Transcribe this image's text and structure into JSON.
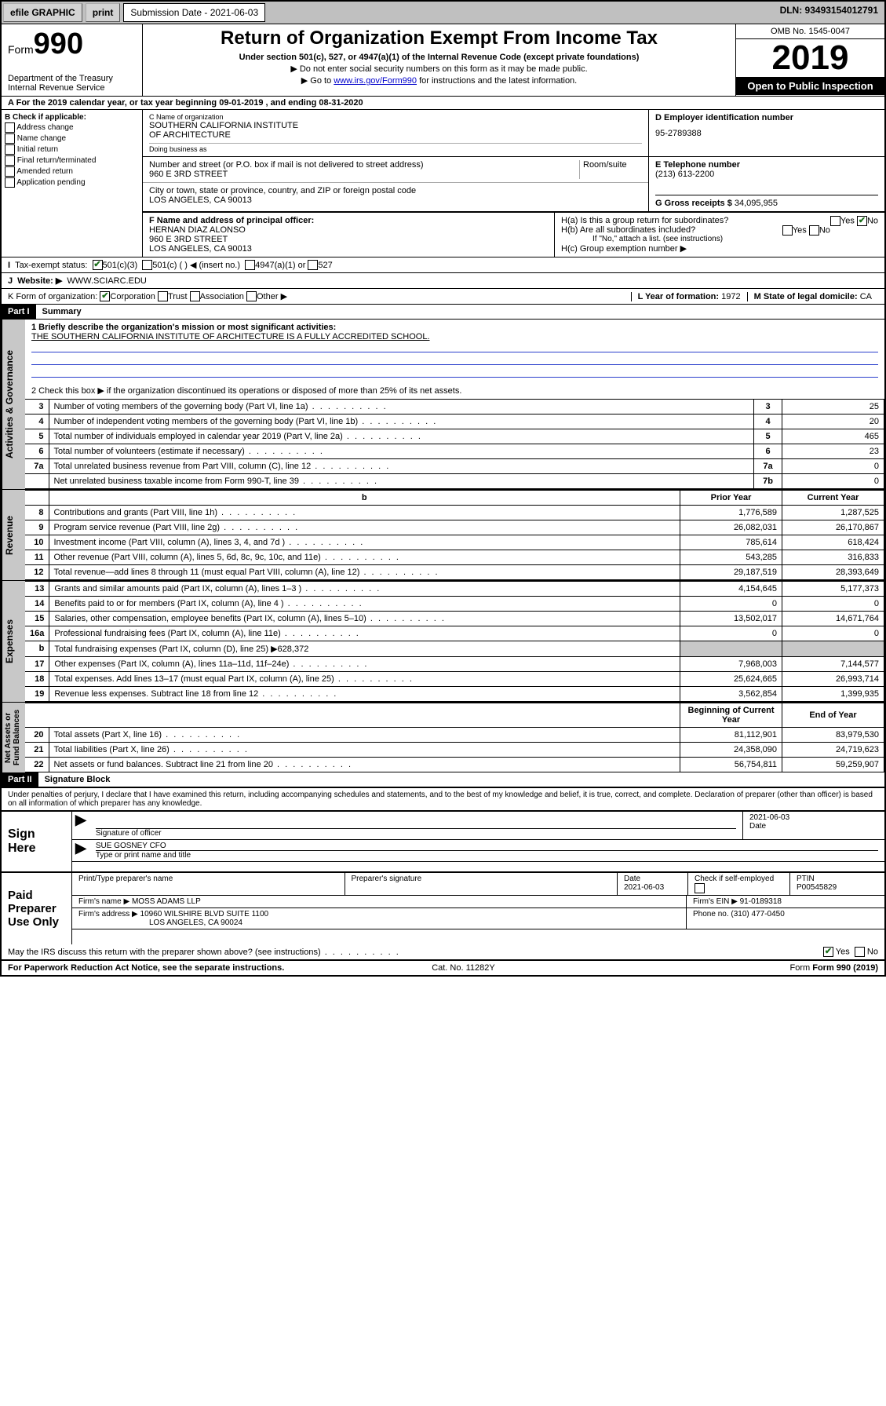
{
  "topbar": {
    "efile": "efile GRAPHIC",
    "print": "print",
    "sub_label": "Submission Date - 2021-06-03",
    "dln": "DLN: 93493154012791"
  },
  "header": {
    "form_prefix": "Form",
    "form_num": "990",
    "title": "Return of Organization Exempt From Income Tax",
    "subtitle": "Under section 501(c), 527, or 4947(a)(1) of the Internal Revenue Code (except private foundations)",
    "note1": "▶ Do not enter social security numbers on this form as it may be made public.",
    "note2_pre": "▶ Go to ",
    "note2_link": "www.irs.gov/Form990",
    "note2_post": " for instructions and the latest information.",
    "dept": "Department of the Treasury\nInternal Revenue Service",
    "omb": "OMB No. 1545-0047",
    "year": "2019",
    "inspect": "Open to Public Inspection"
  },
  "period": "For the 2019 calendar year, or tax year beginning 09-01-2019    , and ending 08-31-2020",
  "box_b": {
    "label": "B Check if applicable:",
    "opts": [
      "Address change",
      "Name change",
      "Initial return",
      "Final return/terminated",
      "Amended return",
      "Application pending"
    ]
  },
  "box_c": {
    "name_lbl": "C Name of organization",
    "name": "SOUTHERN CALIFORNIA INSTITUTE\nOF ARCHITECTURE",
    "dba_lbl": "Doing business as",
    "dba": "",
    "addr_lbl": "Number and street (or P.O. box if mail is not delivered to street address)",
    "addr": "960 E 3RD STREET",
    "room_lbl": "Room/suite",
    "city_lbl": "City or town, state or province, country, and ZIP or foreign postal code",
    "city": "LOS ANGELES, CA  90013"
  },
  "box_d": {
    "lbl": "D Employer identification number",
    "val": "95-2789388"
  },
  "box_e": {
    "lbl": "E Telephone number",
    "val": "(213) 613-2200"
  },
  "box_g": {
    "lbl": "G Gross receipts $",
    "val": "34,095,955"
  },
  "box_f": {
    "lbl": "F  Name and address of principal officer:",
    "name": "HERNAN DIAZ ALONSO",
    "addr1": "960 E 3RD STREET",
    "addr2": "LOS ANGELES, CA  90013"
  },
  "box_h": {
    "a": "H(a)  Is this a group return for subordinates?",
    "b": "H(b)  Are all subordinates included?",
    "b_note": "If \"No,\" attach a list. (see instructions)",
    "c": "H(c)  Group exemption number ▶"
  },
  "tax_status": {
    "lbl": "Tax-exempt status:",
    "c3": "501(c)(3)",
    "c": "501(c) (  ) ◀ (insert no.)",
    "a1": "4947(a)(1) or",
    "s527": "527"
  },
  "website": {
    "lbl": "Website: ▶",
    "val": "WWW.SCIARC.EDU"
  },
  "box_k": "K Form of organization:",
  "k_opts": [
    "Corporation",
    "Trust",
    "Association",
    "Other ▶"
  ],
  "box_l": {
    "lbl": "L Year of formation:",
    "val": "1972"
  },
  "box_m": {
    "lbl": "M State of legal domicile:",
    "val": "CA"
  },
  "part1": {
    "hdr": "Part I",
    "title": "Summary"
  },
  "mission": {
    "lbl": "1  Briefly describe the organization's mission or most significant activities:",
    "text": "THE SOUTHERN CALIFORNIA INSTITUTE OF ARCHITECTURE IS A FULLY ACCREDITED SCHOOL."
  },
  "line2": "2   Check this box ▶        if the organization discontinued its operations or disposed of more than 25% of its net assets.",
  "gov_lines": [
    {
      "n": "3",
      "d": "Number of voting members of the governing body (Part VI, line 1a)",
      "b": "3",
      "v": "25"
    },
    {
      "n": "4",
      "d": "Number of independent voting members of the governing body (Part VI, line 1b)",
      "b": "4",
      "v": "20"
    },
    {
      "n": "5",
      "d": "Total number of individuals employed in calendar year 2019 (Part V, line 2a)",
      "b": "5",
      "v": "465"
    },
    {
      "n": "6",
      "d": "Total number of volunteers (estimate if necessary)",
      "b": "6",
      "v": "23"
    },
    {
      "n": "7a",
      "d": "Total unrelated business revenue from Part VIII, column (C), line 12",
      "b": "7a",
      "v": "0"
    },
    {
      "n": "",
      "d": "Net unrelated business taxable income from Form 990-T, line 39",
      "b": "7b",
      "v": "0"
    }
  ],
  "rev_hdr": {
    "b": "b",
    "py": "Prior Year",
    "cy": "Current Year"
  },
  "rev_lines": [
    {
      "n": "8",
      "d": "Contributions and grants (Part VIII, line 1h)",
      "py": "1,776,589",
      "cy": "1,287,525"
    },
    {
      "n": "9",
      "d": "Program service revenue (Part VIII, line 2g)",
      "py": "26,082,031",
      "cy": "26,170,867"
    },
    {
      "n": "10",
      "d": "Investment income (Part VIII, column (A), lines 3, 4, and 7d )",
      "py": "785,614",
      "cy": "618,424"
    },
    {
      "n": "11",
      "d": "Other revenue (Part VIII, column (A), lines 5, 6d, 8c, 9c, 10c, and 11e)",
      "py": "543,285",
      "cy": "316,833"
    },
    {
      "n": "12",
      "d": "Total revenue—add lines 8 through 11 (must equal Part VIII, column (A), line 12)",
      "py": "29,187,519",
      "cy": "28,393,649"
    }
  ],
  "exp_lines": [
    {
      "n": "13",
      "d": "Grants and similar amounts paid (Part IX, column (A), lines 1–3 )",
      "py": "4,154,645",
      "cy": "5,177,373"
    },
    {
      "n": "14",
      "d": "Benefits paid to or for members (Part IX, column (A), line 4 )",
      "py": "0",
      "cy": "0"
    },
    {
      "n": "15",
      "d": "Salaries, other compensation, employee benefits (Part IX, column (A), lines 5–10)",
      "py": "13,502,017",
      "cy": "14,671,764"
    },
    {
      "n": "16a",
      "d": "Professional fundraising fees (Part IX, column (A), line 11e)",
      "py": "0",
      "cy": "0"
    },
    {
      "n": "b",
      "d": "Total fundraising expenses (Part IX, column (D), line 25) ▶628,372",
      "py": "",
      "cy": "",
      "shade": true
    },
    {
      "n": "17",
      "d": "Other expenses (Part IX, column (A), lines 11a–11d, 11f–24e)",
      "py": "7,968,003",
      "cy": "7,144,577"
    },
    {
      "n": "18",
      "d": "Total expenses. Add lines 13–17 (must equal Part IX, column (A), line 25)",
      "py": "25,624,665",
      "cy": "26,993,714"
    },
    {
      "n": "19",
      "d": "Revenue less expenses. Subtract line 18 from line 12",
      "py": "3,562,854",
      "cy": "1,399,935"
    }
  ],
  "na_hdr": {
    "py": "Beginning of Current Year",
    "cy": "End of Year"
  },
  "na_lines": [
    {
      "n": "20",
      "d": "Total assets (Part X, line 16)",
      "py": "81,112,901",
      "cy": "83,979,530"
    },
    {
      "n": "21",
      "d": "Total liabilities (Part X, line 26)",
      "py": "24,358,090",
      "cy": "24,719,623"
    },
    {
      "n": "22",
      "d": "Net assets or fund balances. Subtract line 21 from line 20",
      "py": "56,754,811",
      "cy": "59,259,907"
    }
  ],
  "vtabs": {
    "gov": "Activities & Governance",
    "rev": "Revenue",
    "exp": "Expenses",
    "na": "Net Assets or\nFund Balances"
  },
  "part2": {
    "hdr": "Part II",
    "title": "Signature Block"
  },
  "penalty": "Under penalties of perjury, I declare that I have examined this return, including accompanying schedules and statements, and to the best of my knowledge and belief, it is true, correct, and complete. Declaration of preparer (other than officer) is based on all information of which preparer has any knowledge.",
  "sign": {
    "here": "Sign Here",
    "sig_lbl": "Signature of officer",
    "date": "2021-06-03",
    "date_lbl": "Date",
    "name": "SUE GOSNEY CFO",
    "name_lbl": "Type or print name and title"
  },
  "paid": {
    "here": "Paid Preparer Use Only",
    "h1": "Print/Type preparer's name",
    "h2": "Preparer's signature",
    "h3": "Date",
    "date": "2021-06-03",
    "h4": "Check         if self-employed",
    "h5": "PTIN",
    "ptin": "P00545829",
    "firm_lbl": "Firm's name     ▶",
    "firm": "MOSS ADAMS LLP",
    "ein_lbl": "Firm's EIN ▶",
    "ein": "91-0189318",
    "addr_lbl": "Firm's address ▶",
    "addr": "10960 WILSHIRE BLVD SUITE 1100",
    "addr2": "LOS ANGELES, CA  90024",
    "phone_lbl": "Phone no.",
    "phone": "(310) 477-0450"
  },
  "discuss": "May the IRS discuss this return with the preparer shown above? (see instructions)",
  "footer": {
    "l": "For Paperwork Reduction Act Notice, see the separate instructions.",
    "c": "Cat. No. 11282Y",
    "r": "Form 990 (2019)"
  }
}
